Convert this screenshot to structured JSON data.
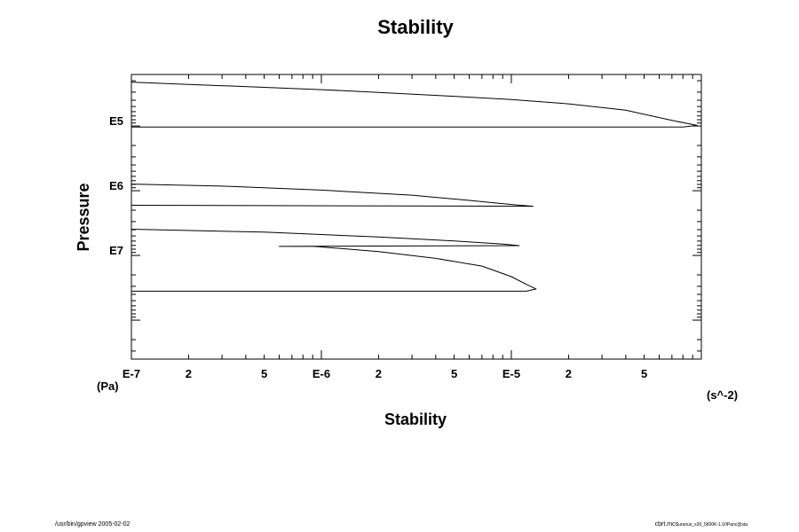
{
  "chart_data": {
    "type": "line",
    "title": "Stability",
    "xlabel": "Stability",
    "ylabel": "Pressure",
    "x_unit": "(s^-2)",
    "y_unit": "(Pa)",
    "x_scale": "log",
    "y_scale": "log",
    "y_inverted": true,
    "xlim": [
      1e-07,
      0.0001
    ],
    "ylim": [
      16000,
      400000000
    ],
    "x_ticks": [
      {
        "value": 1e-07,
        "label": "E-7"
      },
      {
        "value": 2e-07,
        "label": "2"
      },
      {
        "value": 5e-07,
        "label": "5"
      },
      {
        "value": 1e-06,
        "label": "E-6"
      },
      {
        "value": 2e-06,
        "label": "2"
      },
      {
        "value": 5e-06,
        "label": "5"
      },
      {
        "value": 1e-05,
        "label": "E-5"
      },
      {
        "value": 2e-05,
        "label": "2"
      },
      {
        "value": 5e-05,
        "label": "5"
      }
    ],
    "y_ticks": [
      {
        "value": 100000,
        "label": "E5"
      },
      {
        "value": 1000000,
        "label": "E6"
      },
      {
        "value": 10000000,
        "label": "E7"
      }
    ],
    "series": [
      {
        "points": [
          [
            1e-07,
            21000
          ],
          [
            2e-07,
            22800
          ],
          [
            5e-07,
            25300
          ],
          [
            1e-06,
            27400
          ],
          [
            2e-06,
            30300
          ],
          [
            5e-06,
            34800
          ],
          [
            1e-05,
            39100
          ],
          [
            2e-05,
            45400
          ],
          [
            4e-05,
            57000
          ],
          [
            7e-05,
            82000
          ],
          [
            9.5e-05,
            98000
          ],
          [
            8e-05,
            104000
          ],
          [
            1e-07,
            104000
          ]
        ]
      },
      {
        "points": [
          [
            1e-07,
            790000
          ],
          [
            3e-07,
            850000
          ],
          [
            1e-06,
            980000
          ],
          [
            3e-06,
            1170000
          ],
          [
            6e-06,
            1410000
          ],
          [
            1e-05,
            1630000
          ],
          [
            1.3e-05,
            1740000
          ],
          [
            1e-07,
            1680000
          ]
        ]
      },
      {
        "points": [
          [
            1e-07,
            3930000
          ],
          [
            5e-07,
            4370000
          ],
          [
            2e-06,
            5200000
          ],
          [
            5e-06,
            5960000
          ],
          [
            9e-06,
            6680000
          ],
          [
            1.1e-05,
            7050000
          ],
          [
            6e-07,
            7250000
          ],
          [
            9e-07,
            7200000
          ],
          [
            2e-06,
            8700000
          ],
          [
            4e-06,
            11100000
          ],
          [
            7e-06,
            14600000
          ],
          [
            1e-05,
            21300000
          ],
          [
            1.2e-05,
            28000000
          ],
          [
            1.35e-05,
            33000000
          ],
          [
            1.2e-05,
            35700000
          ],
          [
            1e-07,
            35700000
          ]
        ]
      }
    ]
  },
  "footer": {
    "left": "/usr/bin/gpview 2005-02-02",
    "right_main": "cbrt.mcs",
    "right_small": "uranus_s30_5800K-1.0/IPanc@sta"
  }
}
